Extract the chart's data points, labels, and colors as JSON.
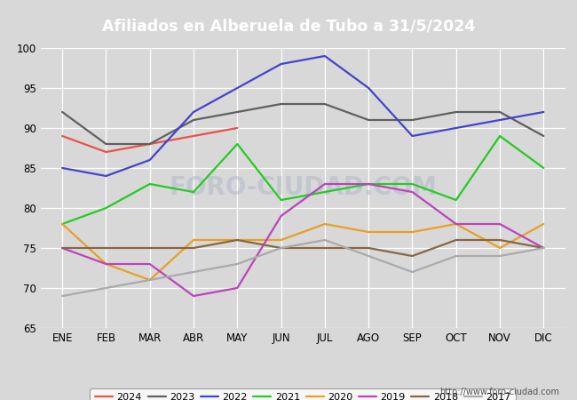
{
  "title": "Afiliados en Alberuela de Tubo a 31/5/2024",
  "xlabel": "",
  "ylabel": "",
  "ylim": [
    65,
    100
  ],
  "yticks": [
    65,
    70,
    75,
    80,
    85,
    90,
    95,
    100
  ],
  "months": [
    "ENE",
    "FEB",
    "MAR",
    "ABR",
    "MAY",
    "JUN",
    "JUL",
    "AGO",
    "SEP",
    "OCT",
    "NOV",
    "DIC"
  ],
  "url": "http://www.foro-ciudad.com",
  "series": [
    {
      "label": "2024",
      "color": "#e8534a",
      "data": [
        89,
        87,
        88,
        89,
        90,
        null,
        null,
        null,
        null,
        null,
        null,
        null
      ]
    },
    {
      "label": "2023",
      "color": "#606060",
      "data": [
        92,
        88,
        88,
        91,
        92,
        93,
        93,
        91,
        91,
        92,
        92,
        89
      ]
    },
    {
      "label": "2022",
      "color": "#4444cc",
      "data": [
        85,
        84,
        86,
        92,
        95,
        98,
        99,
        95,
        89,
        90,
        91,
        92
      ]
    },
    {
      "label": "2021",
      "color": "#22cc22",
      "data": [
        78,
        80,
        83,
        82,
        88,
        81,
        82,
        83,
        83,
        81,
        89,
        85
      ]
    },
    {
      "label": "2020",
      "color": "#e8a020",
      "data": [
        78,
        73,
        71,
        76,
        76,
        76,
        78,
        77,
        77,
        78,
        75,
        78
      ]
    },
    {
      "label": "2019",
      "color": "#bb44bb",
      "data": [
        75,
        73,
        73,
        69,
        70,
        79,
        83,
        83,
        82,
        78,
        78,
        75
      ]
    },
    {
      "label": "2018",
      "color": "#886644",
      "data": [
        75,
        75,
        75,
        75,
        76,
        75,
        75,
        75,
        74,
        76,
        76,
        75
      ]
    },
    {
      "label": "2017",
      "color": "#aaaaaa",
      "data": [
        69,
        70,
        71,
        72,
        73,
        75,
        76,
        74,
        72,
        74,
        74,
        75
      ]
    }
  ],
  "fig_bg_color": "#d8d8d8",
  "plot_bg_color": "#d8d8d8",
  "grid_color": "#ffffff",
  "title_bg_color": "#5599ee",
  "legend_fontsize": 8,
  "axis_fontsize": 8.5,
  "title_fontsize": 12.5
}
